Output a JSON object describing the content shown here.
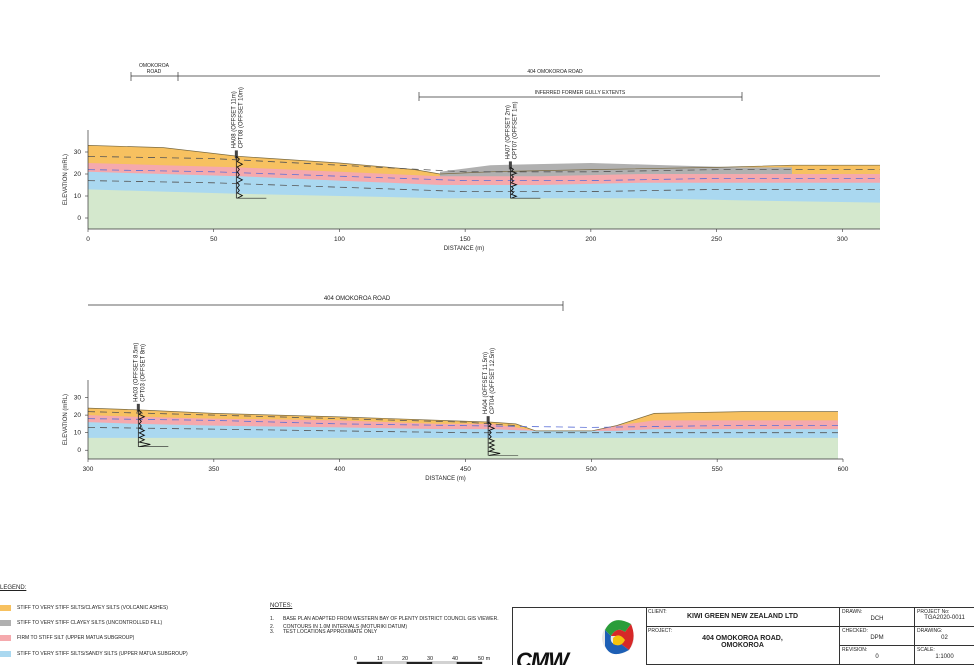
{
  "colors": {
    "volcanic_ashes": "#f7c160",
    "fill": "#b0b0b0",
    "matua_firm": "#f5a9ad",
    "matua_sandy": "#aad8f0",
    "green": "#d4e8cd",
    "boundary_dash": "#555555",
    "matua_dash": "#5b6fd6"
  },
  "sections": [
    {
      "road_omokoroa_label_line1": "OMOKOROA",
      "road_omokoroa_label_line2": "ROAD",
      "road_404_label": "404 OMOKOROA ROAD",
      "gully_label": "INFERRED FORMER GULLY EXTENTS",
      "chart_data": {
        "type": "area",
        "xlabel": "DISTANCE (m)",
        "ylabel": "ELEVATION (mRL)",
        "xlim": [
          0,
          315
        ],
        "ylim": [
          -5,
          40
        ],
        "x_ticks": [
          0,
          50,
          100,
          150,
          200,
          250,
          300
        ],
        "y_ticks": [
          0,
          10,
          20,
          30
        ],
        "layers": [
          {
            "name": "VOLCANIC_ASHES",
            "color_key": "volcanic_ashes",
            "top": [
              [
                0,
                33
              ],
              [
                30,
                32
              ],
              [
                60,
                28
              ],
              [
                100,
                25
              ],
              [
                130,
                22
              ],
              [
                140,
                20
              ],
              [
                160,
                21
              ],
              [
                200,
                22
              ],
              [
                250,
                23
              ],
              [
                280,
                24
              ],
              [
                315,
                24
              ]
            ]
          },
          {
            "name": "FILL",
            "color_key": "fill",
            "top": [
              [
                140,
                21
              ],
              [
                160,
                24
              ],
              [
                200,
                25
              ],
              [
                230,
                24
              ],
              [
                260,
                23
              ],
              [
                280,
                23
              ]
            ]
          },
          {
            "name": "MATUA_FIRM",
            "color_key": "matua_firm",
            "top": [
              [
                0,
                25
              ],
              [
                30,
                24
              ],
              [
                60,
                23
              ],
              [
                100,
                21
              ],
              [
                140,
                19
              ],
              [
                180,
                19
              ],
              [
                220,
                20
              ],
              [
                260,
                20
              ],
              [
                315,
                20
              ]
            ]
          },
          {
            "name": "MATUA_SANDY",
            "color_key": "matua_sandy",
            "top": [
              [
                0,
                21
              ],
              [
                30,
                20
              ],
              [
                60,
                19
              ],
              [
                100,
                17
              ],
              [
                140,
                15
              ],
              [
                180,
                15
              ],
              [
                220,
                16
              ],
              [
                260,
                16
              ],
              [
                315,
                16
              ]
            ]
          },
          {
            "name": "GREEN",
            "color_key": "green",
            "top": [
              [
                0,
                13
              ],
              [
                30,
                12
              ],
              [
                60,
                11
              ],
              [
                100,
                10
              ],
              [
                140,
                9
              ],
              [
                180,
                9
              ],
              [
                220,
                9
              ],
              [
                260,
                8
              ],
              [
                315,
                7
              ]
            ]
          }
        ],
        "dashed_lines": [
          [
            [
              0,
              28
            ],
            [
              50,
              27
            ],
            [
              100,
              24
            ],
            [
              150,
              21
            ],
            [
              200,
              21
            ],
            [
              250,
              22
            ],
            [
              315,
              22
            ]
          ],
          [
            [
              0,
              22
            ],
            [
              50,
              21
            ],
            [
              100,
              19
            ],
            [
              150,
              17
            ],
            [
              200,
              17
            ],
            [
              250,
              18
            ],
            [
              315,
              18
            ]
          ],
          [
            [
              0,
              17
            ],
            [
              50,
              16
            ],
            [
              100,
              14
            ],
            [
              150,
              12
            ],
            [
              200,
              12
            ],
            [
              250,
              13
            ],
            [
              315,
              13
            ]
          ]
        ],
        "tests": [
          {
            "x": 59,
            "label1": "HA08 (OFFSET 11m)",
            "label2": "CPT08 (OFFSET 10m)",
            "top": 28,
            "bottom": 9
          },
          {
            "x": 168,
            "label1": "HA07 (OFFSET 2m)",
            "label2": "CPT07 (OFFSET 1m)",
            "top": 23,
            "bottom": 9
          }
        ]
      }
    },
    {
      "road_404_label": "404 OMOKOROA ROAD",
      "chart_data": {
        "type": "area",
        "xlabel": "DISTANCE (m)",
        "ylabel": "ELEVATION (mRL)",
        "xlim": [
          300,
          600
        ],
        "ylim": [
          -5,
          40
        ],
        "x_ticks": [
          300,
          350,
          400,
          450,
          500,
          550,
          600
        ],
        "y_ticks": [
          0,
          10,
          20,
          30
        ],
        "layers": [
          {
            "name": "VOLCANIC_ASHES",
            "color_key": "volcanic_ashes",
            "top": [
              [
                300,
                24
              ],
              [
                320,
                23
              ],
              [
                350,
                21
              ],
              [
                400,
                19
              ],
              [
                440,
                17
              ],
              [
                460,
                16
              ],
              [
                470,
                15
              ],
              [
                478,
                11
              ],
              [
                500,
                11
              ],
              [
                510,
                14
              ],
              [
                525,
                21
              ],
              [
                560,
                22
              ],
              [
                598,
                22
              ]
            ]
          },
          {
            "name": "MATUA_FIRM",
            "color_key": "matua_firm",
            "top": [
              [
                300,
                20
              ],
              [
                320,
                19
              ],
              [
                350,
                18
              ],
              [
                400,
                17
              ],
              [
                440,
                15
              ],
              [
                460,
                15
              ],
              [
                470,
                13
              ],
              [
                478,
                11
              ],
              [
                500,
                11
              ],
              [
                510,
                14
              ],
              [
                525,
                17
              ],
              [
                560,
                17
              ],
              [
                598,
                17
              ]
            ]
          },
          {
            "name": "MATUA_SANDY",
            "color_key": "matua_sandy",
            "top": [
              [
                300,
                16
              ],
              [
                320,
                15
              ],
              [
                350,
                14
              ],
              [
                400,
                13
              ],
              [
                440,
                12
              ],
              [
                460,
                12
              ],
              [
                478,
                11
              ],
              [
                500,
                11
              ],
              [
                510,
                11
              ],
              [
                525,
                12
              ],
              [
                560,
                12
              ],
              [
                598,
                12
              ]
            ]
          },
          {
            "name": "GREEN",
            "color_key": "green",
            "top": [
              [
                300,
                7
              ],
              [
                350,
                7
              ],
              [
                400,
                7
              ],
              [
                450,
                7
              ],
              [
                500,
                7
              ],
              [
                550,
                7
              ],
              [
                598,
                7
              ]
            ]
          }
        ],
        "dashed_lines": [
          [
            [
              300,
              22
            ],
            [
              350,
              20
            ],
            [
              400,
              18
            ],
            [
              450,
              16
            ],
            [
              470,
              14
            ]
          ],
          [
            [
              300,
              18
            ],
            [
              350,
              17
            ],
            [
              400,
              15
            ],
            [
              450,
              14
            ],
            [
              500,
              13
            ],
            [
              550,
              14
            ],
            [
              598,
              14
            ]
          ],
          [
            [
              300,
              13
            ],
            [
              350,
              12
            ],
            [
              400,
              11
            ],
            [
              450,
              10
            ],
            [
              500,
              10
            ],
            [
              550,
              10
            ],
            [
              598,
              10
            ]
          ]
        ],
        "tests": [
          {
            "x": 320,
            "label1": "HA03 (OFFSET 8.5m)",
            "label2": "CPT03 (OFFSET 8m)",
            "top": 23,
            "bottom": 2
          },
          {
            "x": 459,
            "label1": "HA04 (OFFSET 11.5m)",
            "label2": "CPT04 (OFFSET 12.5m)",
            "top": 16,
            "bottom": -3
          }
        ]
      }
    }
  ],
  "legend": {
    "title": "LEGEND:",
    "items": [
      {
        "label": "STIFF TO VERY STIFF SILTS/CLAYEY SILTS (VOLCANIC ASHES)",
        "color_key": "volcanic_ashes"
      },
      {
        "label": "STIFF TO VERY STIFF CLAYEY SILTS (UNCONTROLLED FILL)",
        "color_key": "fill"
      },
      {
        "label": "FIRM TO STIFF SILT (UPPER MATUA SUBGROUP)",
        "color_key": "matua_firm"
      },
      {
        "label": "STIFF TO VERY STIFF SILTS/SANDY SILTS (UPPER MATUA SUBGROUP)",
        "color_key": "matua_sandy"
      }
    ]
  },
  "notes": {
    "title": "NOTES:",
    "items": [
      {
        "num": "1.",
        "text": "BASE PLAN ADAPTED FROM WESTERN BAY OF PLENTY DISTRICT COUNCIL GIS VIEWER."
      },
      {
        "num": "2.",
        "text": "CONTOURS IN 1.0M INTERVALS (MOTURIKI DATUM)"
      },
      {
        "num": "3.",
        "text": "TEST LOCATIONS APPROXIMATE ONLY"
      }
    ]
  },
  "scalebar": {
    "labels": [
      "0",
      "10",
      "20",
      "30",
      "40",
      "50 m"
    ]
  },
  "titleblock": {
    "logo_text": "CMW",
    "client_label": "CLIENT:",
    "client_value": "KIWI GREEN NEW ZEALAND LTD",
    "project_label": "PROJECT:",
    "project_value_line1": "404 OMOKOROA ROAD,",
    "project_value_line2": "OMOKOROA",
    "drawn_label": "DRAWN:",
    "drawn_value": "DCH",
    "checked_label": "CHECKED:",
    "checked_value": "DPM",
    "revision_label": "REVISION:",
    "revision_value": "0",
    "projno_label": "PROJECT No:",
    "projno_value": "TGA2020-0011",
    "drawing_label": "DRAWING:",
    "drawing_value": "02",
    "scale_label": "SCALE:",
    "scale_value": "1:1000"
  }
}
